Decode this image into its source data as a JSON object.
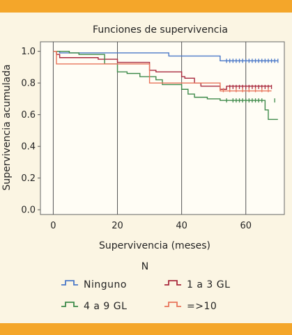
{
  "chart_data": {
    "type": "line",
    "title": "Funciones de supervivencia",
    "xlabel": "Supervivencia (meses)",
    "ylabel": "Supervivencia acumulada",
    "xlim": [
      -4,
      72
    ],
    "ylim": [
      -0.03,
      1.06
    ],
    "xticks": [
      0,
      20,
      40,
      60
    ],
    "yticks": [
      0.0,
      0.2,
      0.4,
      0.6,
      0.8,
      1.0
    ],
    "xtick_labels": [
      "0",
      "20",
      "40",
      "60"
    ],
    "ytick_labels": [
      "0.0",
      "0.2",
      "0.4",
      "0.6",
      "0.8",
      "1.0"
    ],
    "grid": "vertical",
    "legend_title": "N",
    "legend_position": "bottom",
    "series": [
      {
        "name": "Ninguno",
        "color": "#4A78C8",
        "x": [
          0,
          2,
          36,
          52,
          70
        ],
        "y": [
          1.0,
          0.99,
          0.97,
          0.94,
          0.94
        ],
        "censored_x": [
          54,
          55,
          56,
          57,
          58,
          59,
          60,
          61,
          62,
          63,
          64,
          65,
          66,
          67,
          68,
          69,
          70
        ],
        "censored_y": 0.94
      },
      {
        "name": "1 a 3 GL",
        "color": "#A8283C",
        "x": [
          0,
          1,
          2,
          14,
          20,
          30,
          32,
          40,
          41,
          44,
          46,
          52,
          54,
          68
        ],
        "y": [
          1.0,
          0.98,
          0.96,
          0.95,
          0.93,
          0.88,
          0.87,
          0.84,
          0.83,
          0.8,
          0.78,
          0.76,
          0.78,
          0.78
        ],
        "censored_x": [
          55,
          56,
          57,
          58,
          59,
          60,
          61,
          62,
          63,
          64,
          65,
          66,
          67,
          68
        ],
        "censored_y": 0.775
      },
      {
        "name": "4 a 9 GL",
        "color": "#3E8A4A",
        "x": [
          0,
          5,
          8,
          16,
          20,
          23,
          27,
          32,
          34,
          40,
          42,
          44,
          48,
          52,
          56,
          66,
          67,
          68,
          70
        ],
        "y": [
          1.0,
          0.99,
          0.98,
          0.92,
          0.87,
          0.86,
          0.84,
          0.82,
          0.79,
          0.76,
          0.73,
          0.71,
          0.7,
          0.69,
          0.69,
          0.63,
          0.57,
          0.57,
          0.57
        ],
        "censored_x": [
          54,
          56,
          57,
          58,
          59,
          60,
          61,
          62,
          63,
          64,
          65,
          69
        ],
        "censored_y": 0.69
      },
      {
        "name": "=>10",
        "color": "#E8745A",
        "x": [
          0,
          1,
          28,
          30,
          42,
          52,
          68
        ],
        "y": [
          1.0,
          0.92,
          0.92,
          0.8,
          0.8,
          0.75,
          0.75
        ],
        "censored_x": [
          53,
          55,
          57,
          59,
          61,
          63,
          65,
          67
        ],
        "censored_y": 0.755
      }
    ]
  }
}
